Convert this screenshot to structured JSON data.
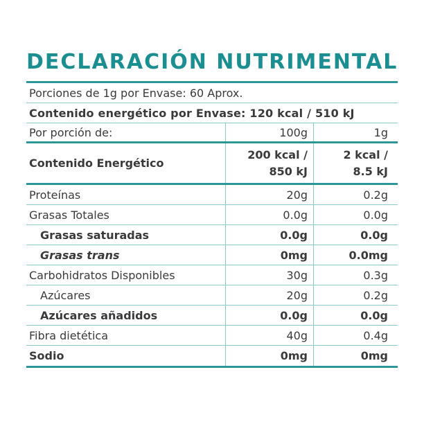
{
  "title": "DECLARACIÓN NUTRIMENTAL",
  "servings": "Porciones de 1g por Envase: 60 Aprox.",
  "energy_per_package": "Contenido energético por Envase: 120 kcal / 510 kJ",
  "header": {
    "label": "Por porción de:",
    "col1": "100g",
    "col2": "1g"
  },
  "energy": {
    "label": "Contenido Energético",
    "col1_line1": "200 kcal /",
    "col1_line2": "850 kJ",
    "col2_line1": "2 kcal /",
    "col2_line2": "8.5 kJ"
  },
  "rows": [
    {
      "label": "Proteínas",
      "col1": "20g",
      "col2": "0.2g"
    },
    {
      "label": "Grasas Totales",
      "col1": "0.0g",
      "col2": "0.0g"
    },
    {
      "label": "Grasas saturadas",
      "col1": "0.0g",
      "col2": "0.0g"
    },
    {
      "label": "Grasas trans",
      "col1": "0mg",
      "col2": "0.0mg"
    },
    {
      "label": "Carbohidratos Disponibles",
      "col1": "30g",
      "col2": "0.3g"
    },
    {
      "label": "Azúcares",
      "col1": "20g",
      "col2": "0.2g"
    },
    {
      "label": "Azúcares añadidos",
      "col1": "0.0g",
      "col2": "0.0g"
    },
    {
      "label": "Fibra dietética",
      "col1": "40g",
      "col2": "0.4g"
    },
    {
      "label": "Sodio",
      "col1": "0mg",
      "col2": "0mg"
    }
  ]
}
